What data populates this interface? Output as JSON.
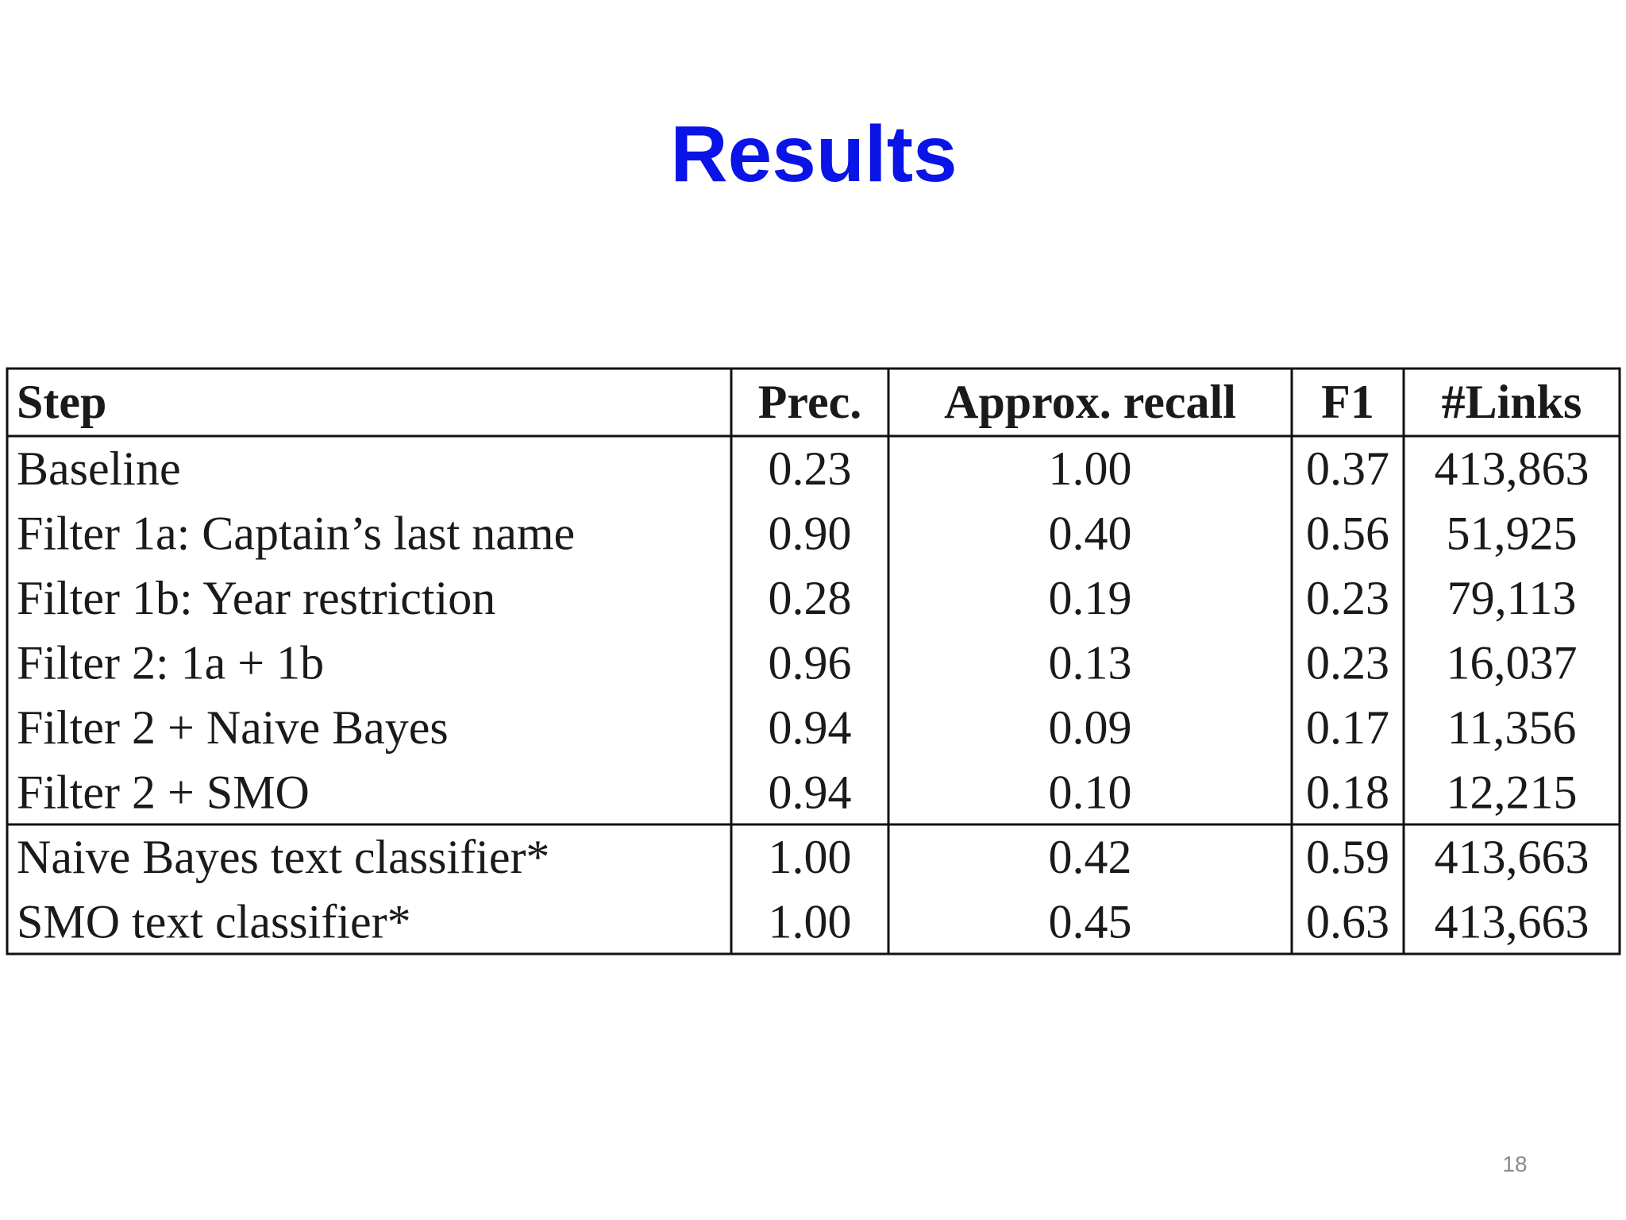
{
  "title": "Results",
  "table": {
    "header": [
      "Step",
      "Prec.",
      "Approx. recall",
      "F1",
      "#Links"
    ],
    "rows": [
      [
        "Baseline",
        "0.23",
        "1.00",
        "0.37",
        "413,863"
      ],
      [
        "Filter 1a: Captain’s last name",
        "0.90",
        "0.40",
        "0.56",
        "51,925"
      ],
      [
        "Filter 1b: Year restriction",
        "0.28",
        "0.19",
        "0.23",
        "79,113"
      ],
      [
        "Filter 2: 1a + 1b",
        "0.96",
        "0.13",
        "0.23",
        "16,037"
      ],
      [
        "Filter 2 + Naive Bayes",
        "0.94",
        "0.09",
        "0.17",
        "11,356"
      ],
      [
        "Filter 2 + SMO",
        "0.94",
        "0.10",
        "0.18",
        "12,215"
      ],
      [
        "Naive Bayes text classifier*",
        "1.00",
        "0.42",
        "0.59",
        "413,663"
      ],
      [
        "SMO text classifier*",
        "1.00",
        "0.45",
        "0.63",
        "413,663"
      ]
    ]
  },
  "page_number": "18"
}
